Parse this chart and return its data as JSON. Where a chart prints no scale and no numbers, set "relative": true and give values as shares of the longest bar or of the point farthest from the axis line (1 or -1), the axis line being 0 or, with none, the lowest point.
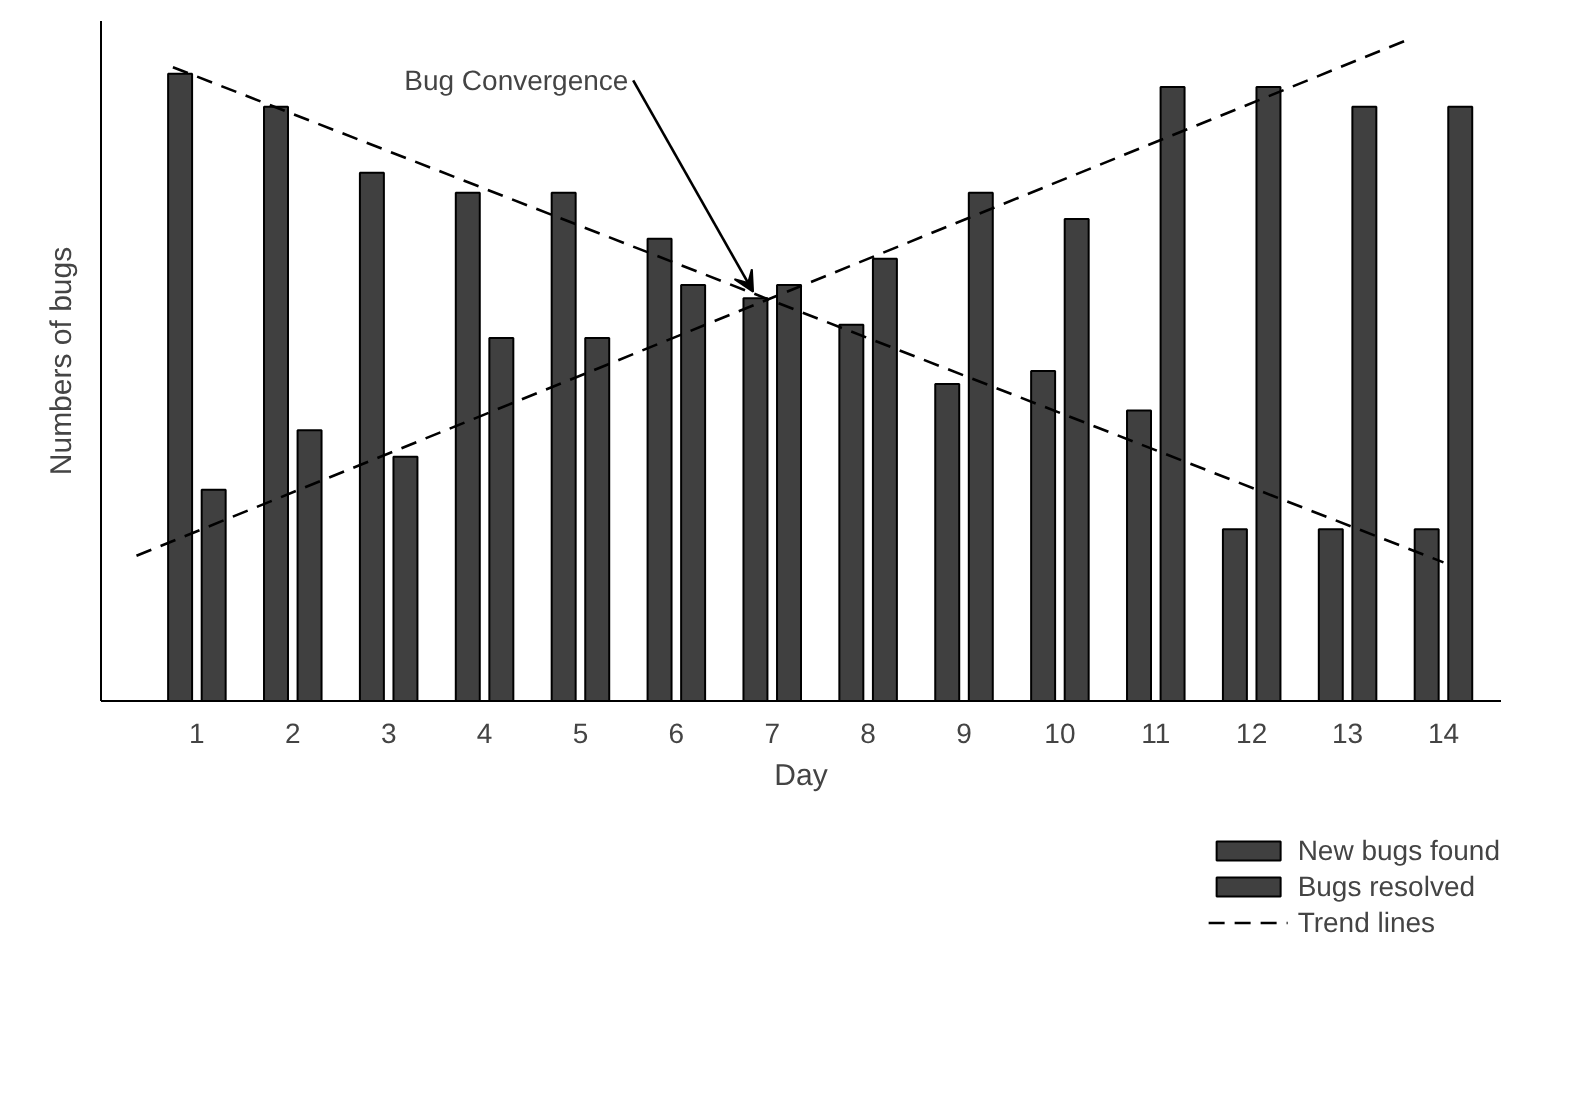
{
  "chart_data": {
    "type": "bar",
    "relative": true,
    "ylabel": "Numbers of bugs",
    "xlabel": "Day",
    "x": [
      1,
      2,
      3,
      4,
      5,
      6,
      7,
      8,
      9,
      10,
      11,
      12,
      13,
      14
    ],
    "xlim": [
      0,
      14.6
    ],
    "xticks": [
      1,
      2,
      3,
      4,
      5,
      6,
      7,
      8,
      9,
      10,
      11,
      12,
      13,
      14
    ],
    "series": [
      {
        "name": "New bugs found",
        "color": "#404040",
        "values": [
          0.95,
          0.9,
          0.8,
          0.77,
          0.77,
          0.7,
          0.61,
          0.57,
          0.48,
          0.5,
          0.44,
          0.26,
          0.26,
          0.26
        ]
      },
      {
        "name": "Bugs resolved",
        "color": "#404040",
        "values": [
          0.32,
          0.41,
          0.37,
          0.55,
          0.55,
          0.63,
          0.63,
          0.67,
          0.77,
          0.73,
          0.93,
          0.93,
          0.9,
          0.9
        ]
      },
      {
        "name": "Trend lines",
        "type": "line",
        "line_style": "dashed",
        "color": "#000000",
        "x": [
          0.75,
          14.0
        ],
        "values": [
          0.96,
          0.21
        ]
      },
      {
        "type": "line",
        "line_style": "dashed",
        "color": "#000000",
        "x": [
          0.37,
          13.6
        ],
        "values": [
          0.22,
          1.0
        ]
      }
    ],
    "annotations": [
      {
        "text": "Bug Convergence",
        "x": 6.8,
        "y": 0.61
      }
    ],
    "grid": false,
    "legend": "bottom right"
  }
}
